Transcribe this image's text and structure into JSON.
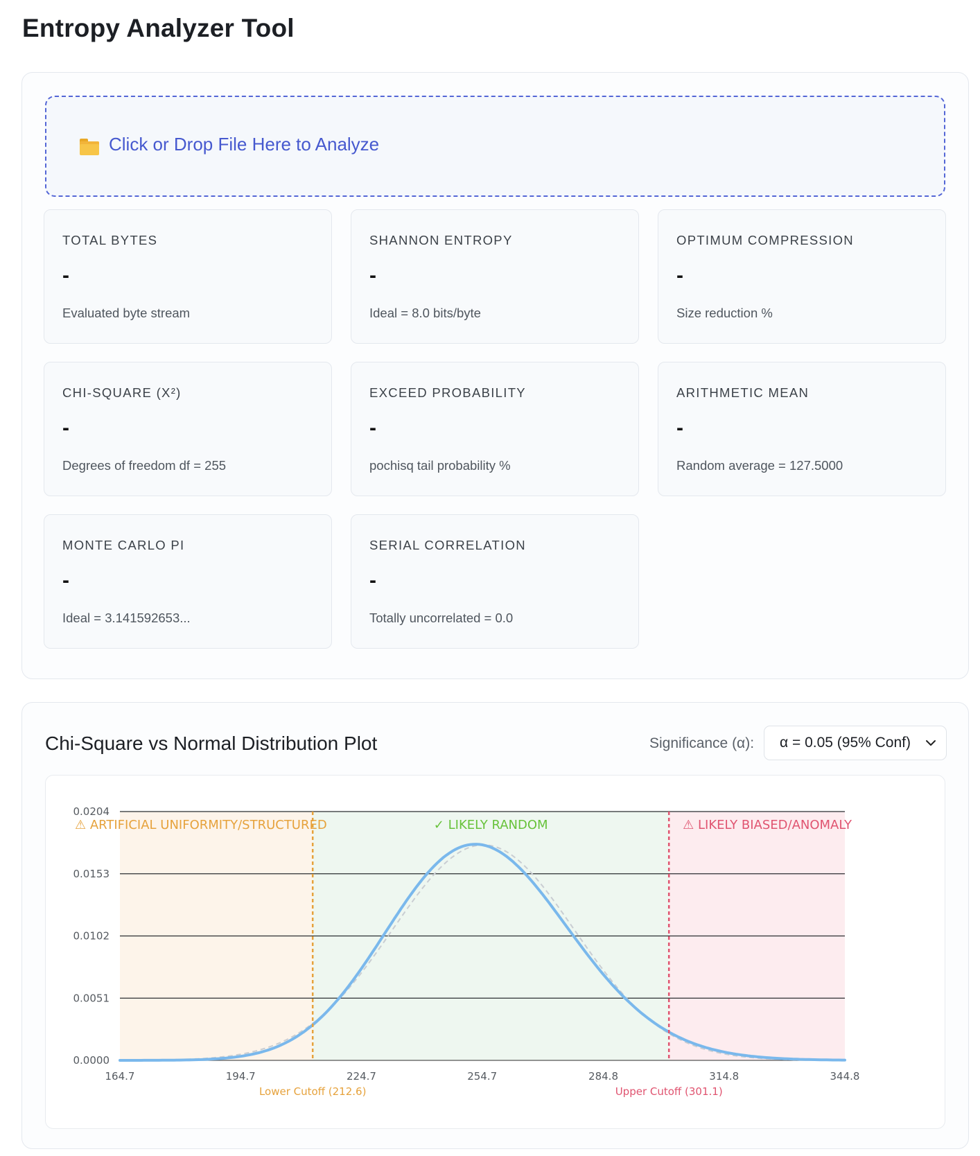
{
  "app": {
    "title": "Entropy Analyzer Tool"
  },
  "dropzone": {
    "icon": "folder-icon",
    "label": "Click or Drop File Here to Analyze"
  },
  "stats": [
    {
      "label": "TOTAL BYTES",
      "value": "-",
      "sub": "Evaluated byte stream"
    },
    {
      "label": "SHANNON ENTROPY",
      "value": "-",
      "sub": "Ideal = 8.0 bits/byte"
    },
    {
      "label": "OPTIMUM COMPRESSION",
      "value": "-",
      "sub": "Size reduction %"
    },
    {
      "label": "CHI-SQUARE (X²)",
      "value": "-",
      "sub": "Degrees of freedom df = 255"
    },
    {
      "label": "EXCEED PROBABILITY",
      "value": "-",
      "sub": "pochisq tail probability %"
    },
    {
      "label": "ARITHMETIC MEAN",
      "value": "-",
      "sub": "Random average = 127.5000"
    },
    {
      "label": "MONTE CARLO PI",
      "value": "-",
      "sub": "Ideal = 3.141592653..."
    },
    {
      "label": "SERIAL CORRELATION",
      "value": "-",
      "sub": "Totally uncorrelated = 0.0"
    }
  ],
  "chart_panel": {
    "title": "Chi-Square vs Normal Distribution Plot",
    "significance_label": "Significance (α):",
    "significance_selected": "α = 0.05 (95% Conf)"
  },
  "colors": {
    "accent": "#4659cf",
    "structured": "#e6a23c",
    "random": "#67c23a",
    "biased": "#e05470",
    "curve": "#7ab8ec"
  },
  "chart_data": {
    "type": "line",
    "title": "Chi-Square vs Normal Distribution Plot",
    "xlim": [
      164.7,
      344.8
    ],
    "ylim": [
      0,
      0.0204
    ],
    "x_ticks": [
      "164.7",
      "194.7",
      "224.7",
      "254.7",
      "284.8",
      "314.8",
      "344.8"
    ],
    "y_ticks": [
      "0.0204",
      "0.0153",
      "0.0102",
      "0.0051",
      "0.0000"
    ],
    "grid": true,
    "zones": [
      {
        "label": "⚠ ARTIFICIAL UNIFORMITY/STRUCTURED",
        "from": 164.7,
        "to": 212.6
      },
      {
        "label": "✓ LIKELY RANDOM",
        "from": 212.6,
        "to": 301.1
      },
      {
        "label": "⚠ LIKELY BIASED/ANOMALY",
        "from": 301.1,
        "to": 344.8
      }
    ],
    "cutoffs": [
      {
        "label": "Lower Cutoff (212.6)",
        "x": 212.6
      },
      {
        "label": "Upper Cutoff (301.1)",
        "x": 301.1
      }
    ],
    "series": [
      {
        "kind": "chi-square",
        "df": 255
      },
      {
        "kind": "normal",
        "mean": 255,
        "sd": 22.58
      }
    ]
  }
}
